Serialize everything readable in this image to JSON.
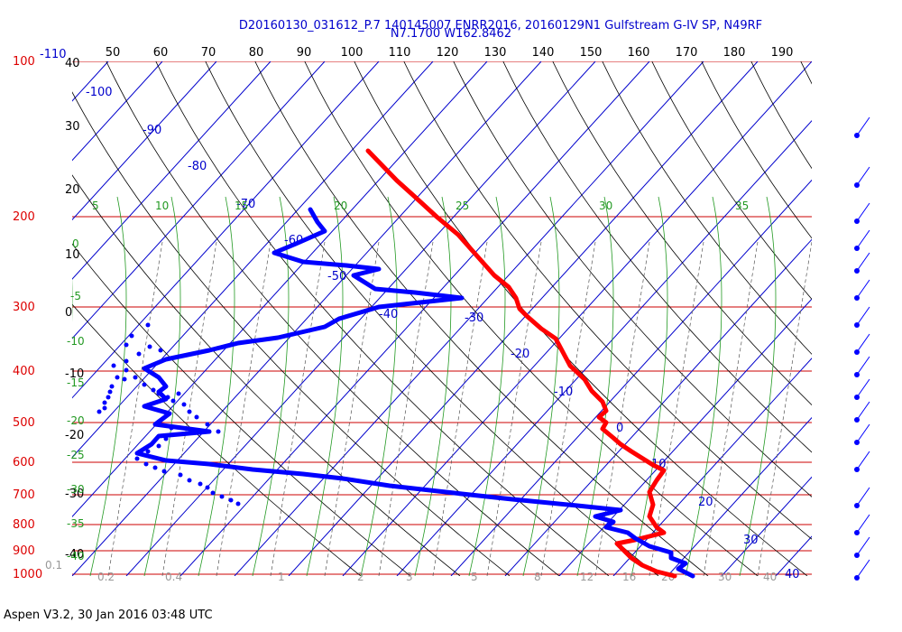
{
  "header": {
    "line1": "D20160130_031612_P.7 140145007 ENRR2016, 20160129N1 Gulfstream G-IV SP, N49RF",
    "line2": "N7.1700 W162.8462"
  },
  "footer": {
    "text": "Aspen V3.2, 30 Jan 2016  03:48 UTC"
  },
  "colors": {
    "temperature": "#ff0000",
    "dewpoint": "#0000ff",
    "isobar": "#cc0000",
    "isotherm": "#0000cc",
    "moist_adiabat": "#229922",
    "mixing_ratio": "#555555"
  },
  "chart_data": {
    "type": "line",
    "title": "",
    "xlabel": "",
    "ylabel": "",
    "top_axis_ticks": [
      "50",
      "60",
      "70",
      "80",
      "90",
      "100",
      "110",
      "120",
      "130",
      "140",
      "150",
      "160",
      "170",
      "180",
      "190"
    ],
    "pressure_labels": [
      "100",
      "200",
      "300",
      "400",
      "500",
      "600",
      "700",
      "800",
      "900",
      "1000"
    ],
    "height_labels": [
      "-110",
      "40",
      "30",
      "20",
      "10",
      "0",
      "-10",
      "-20",
      "-30",
      "-40"
    ],
    "isotherm_labels": [
      "-100",
      "-90",
      "-80",
      "-70",
      "-60",
      "-50",
      "-40",
      "-30",
      "-20",
      "-10",
      "0",
      "10",
      "20",
      "30",
      "40"
    ],
    "moist_labels": [
      "5",
      "10",
      "15",
      "20",
      "25",
      "30",
      "35",
      "0",
      "-5",
      "-10",
      "-15",
      "-20",
      "-25",
      "-30",
      "-35",
      "-40"
    ],
    "mixing_labels": [
      "0.1",
      "0.2",
      "0.4",
      "1",
      "2",
      "3",
      "5",
      "8",
      "12",
      "16",
      "20",
      "30",
      "40"
    ],
    "series": [
      {
        "key": "temperature",
        "values": [
          [
            102,
            167
          ],
          [
            110,
            200
          ],
          [
            115,
            218
          ],
          [
            121,
            240
          ],
          [
            127,
            260
          ],
          [
            131,
            278
          ],
          [
            137,
            305
          ],
          [
            141,
            318
          ],
          [
            143,
            330
          ],
          [
            144,
            342
          ],
          [
            146,
            350
          ],
          [
            150,
            364
          ],
          [
            154,
            375
          ],
          [
            156,
            390
          ],
          [
            158,
            405
          ],
          [
            162,
            420
          ],
          [
            164,
            433
          ],
          [
            167,
            445
          ],
          [
            168,
            455
          ],
          [
            166,
            462
          ],
          [
            168,
            468
          ],
          [
            167,
            475
          ],
          [
            170,
            485
          ],
          [
            172,
            492
          ],
          [
            175,
            500
          ],
          [
            181,
            515
          ],
          [
            184,
            521
          ],
          [
            182,
            532
          ],
          [
            180,
            545
          ],
          [
            181,
            559
          ],
          [
            180,
            572
          ],
          [
            182,
            584
          ],
          [
            184,
            590
          ],
          [
            180,
            594
          ],
          [
            176,
            598
          ],
          [
            171,
            602
          ],
          [
            173,
            610
          ],
          [
            175,
            618
          ],
          [
            178,
            626
          ],
          [
            182,
            633
          ],
          [
            187,
            638
          ]
        ]
      },
      {
        "key": "dewpoint",
        "values": [
          [
            86,
            232
          ],
          [
            88,
            246
          ],
          [
            90,
            256
          ],
          [
            82,
            270
          ],
          [
            76,
            280
          ],
          [
            84,
            290
          ],
          [
            96,
            294
          ],
          [
            105,
            298
          ],
          [
            98,
            305
          ],
          [
            104,
            320
          ],
          [
            115,
            324
          ],
          [
            128,
            330
          ],
          [
            105,
            340
          ],
          [
            94,
            353
          ],
          [
            90,
            362
          ],
          [
            77,
            374
          ],
          [
            66,
            380
          ],
          [
            58,
            388
          ],
          [
            46,
            398
          ],
          [
            40,
            408
          ],
          [
            44,
            418
          ],
          [
            46,
            428
          ],
          [
            44,
            434
          ],
          [
            46,
            442
          ],
          [
            40,
            450
          ],
          [
            47,
            458
          ],
          [
            43,
            470
          ],
          [
            58,
            478
          ],
          [
            44,
            483
          ],
          [
            42,
            492
          ],
          [
            38,
            502
          ],
          [
            46,
            510
          ],
          [
            58,
            514
          ],
          [
            70,
            520
          ],
          [
            84,
            525
          ],
          [
            95,
            530
          ],
          [
            108,
            538
          ],
          [
            128,
            547
          ],
          [
            142,
            553
          ],
          [
            160,
            560
          ],
          [
            172,
            565
          ],
          [
            165,
            572
          ],
          [
            170,
            578
          ],
          [
            168,
            584
          ],
          [
            174,
            590
          ],
          [
            176,
            596
          ],
          [
            180,
            605
          ],
          [
            186,
            612
          ],
          [
            186,
            618
          ],
          [
            190,
            624
          ],
          [
            188,
            630
          ],
          [
            192,
            638
          ]
        ]
      },
      {
        "key": "dewpoint_scatter",
        "values": [
          [
            84,
            360
          ],
          [
            66,
            372
          ],
          [
            60,
            382
          ],
          [
            86,
            384
          ],
          [
            98,
            388
          ],
          [
            74,
            392
          ],
          [
            60,
            400
          ],
          [
            46,
            405
          ],
          [
            50,
            418
          ],
          [
            44,
            428
          ],
          [
            42,
            434
          ],
          [
            40,
            440
          ],
          [
            36,
            446
          ],
          [
            36,
            452
          ],
          [
            30,
            456
          ],
          [
            60,
            410
          ],
          [
            58,
            420
          ],
          [
            70,
            418
          ],
          [
            80,
            426
          ],
          [
            90,
            432
          ],
          [
            96,
            436
          ],
          [
            106,
            440
          ],
          [
            112,
            444
          ],
          [
            118,
            436
          ],
          [
            124,
            448
          ],
          [
            130,
            456
          ],
          [
            138,
            462
          ],
          [
            150,
            470
          ],
          [
            162,
            478
          ],
          [
            110,
            474
          ],
          [
            104,
            486
          ],
          [
            96,
            494
          ],
          [
            84,
            500
          ],
          [
            72,
            508
          ],
          [
            82,
            514
          ],
          [
            92,
            518
          ],
          [
            102,
            522
          ],
          [
            120,
            526
          ],
          [
            130,
            532
          ],
          [
            142,
            536
          ],
          [
            150,
            540
          ],
          [
            156,
            546
          ],
          [
            166,
            550
          ],
          [
            176,
            554
          ],
          [
            184,
            558
          ]
        ]
      },
      {
        "key": "wind_barb",
        "values": [
          [
            0,
            150
          ],
          [
            0,
            205
          ],
          [
            0,
            245
          ],
          [
            0,
            275
          ],
          [
            0,
            300
          ],
          [
            0,
            330
          ],
          [
            0,
            360
          ],
          [
            0,
            390
          ],
          [
            0,
            415
          ],
          [
            0,
            440
          ],
          [
            0,
            465
          ],
          [
            0,
            490
          ],
          [
            0,
            520
          ],
          [
            0,
            560
          ],
          [
            0,
            590
          ],
          [
            0,
            615
          ],
          [
            0,
            640
          ]
        ]
      }
    ]
  }
}
